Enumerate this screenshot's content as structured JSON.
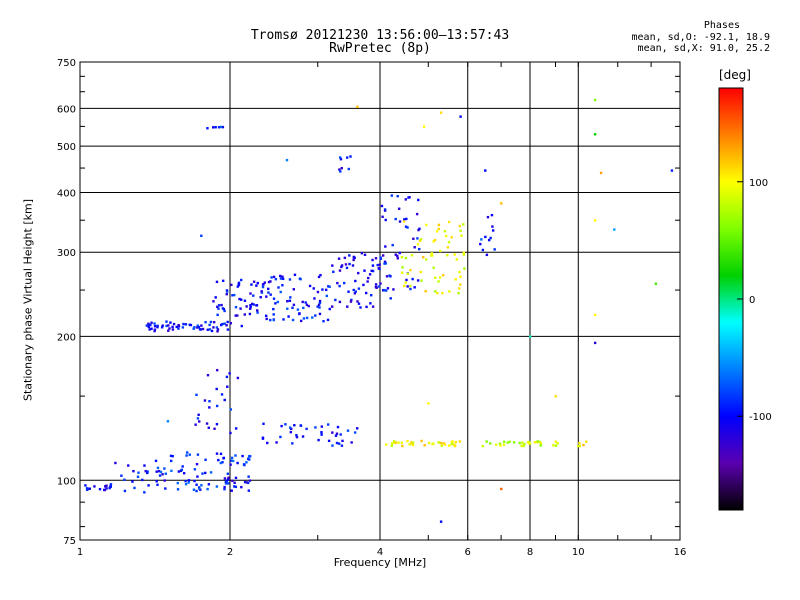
{
  "header": {
    "title_line1": "Tromsø 20121230 13:56:00–13:57:43",
    "title_line2": "RwPretec (8p)"
  },
  "stats": {
    "heading": "Phases",
    "line1": "mean, sd,O: -92.1, 18.9",
    "line2": "mean, sd,X:  91.0, 25.2"
  },
  "colorbar": {
    "label": "[deg]",
    "min": -180,
    "max": 180,
    "ticks": [
      100,
      0,
      -100
    ],
    "colors": [
      "#ff0000",
      "#ff7f00",
      "#ffff00",
      "#7fff00",
      "#00d000",
      "#00ffff",
      "#007fff",
      "#0000ff",
      "#5a00b0",
      "#000000"
    ]
  },
  "chart_data": {
    "type": "scatter",
    "title": "Tromsø 20121230 13:56:00–13:57:43",
    "subtitle": "RwPretec (8p)",
    "xlabel": "Frequency [MHz]",
    "ylabel": "Stationary phase Virtual Height [km]",
    "x_scale": "log",
    "y_scale": "log",
    "xlim": [
      1,
      16
    ],
    "ylim": [
      75,
      750
    ],
    "x_ticks": [
      1,
      2,
      4,
      6,
      8,
      10,
      16
    ],
    "y_ticks": [
      75,
      100,
      200,
      300,
      400,
      500,
      600,
      750
    ],
    "x_gridlines": [
      2,
      4,
      6,
      8,
      10
    ],
    "y_gridlines": [
      100,
      200,
      300,
      400,
      500,
      600
    ],
    "grid": true,
    "clusters": [
      {
        "x_range": [
          1.0,
          1.15
        ],
        "y_range": [
          95,
          98
        ],
        "phase": -105,
        "count": 14
      },
      {
        "x_range": [
          1.15,
          1.5
        ],
        "y_range": [
          93,
          110
        ],
        "phase": -95,
        "count": 30
      },
      {
        "x_range": [
          1.5,
          2.2
        ],
        "y_range": [
          95,
          102
        ],
        "phase": -90,
        "count": 30
      },
      {
        "x_range": [
          1.45,
          2.2
        ],
        "y_range": [
          103,
          115
        ],
        "phase": -90,
        "count": 45
      },
      {
        "x_range": [
          1.7,
          2.1
        ],
        "y_range": [
          125,
          175
        ],
        "phase": -100,
        "count": 25
      },
      {
        "x_range": [
          1.95,
          2.2
        ],
        "y_range": [
          98,
          102
        ],
        "phase": -110,
        "count": 10
      },
      {
        "x_range": [
          2.3,
          3.6
        ],
        "y_range": [
          118,
          132
        ],
        "phase": -95,
        "count": 40
      },
      {
        "x_range": [
          4.1,
          5.8
        ],
        "y_range": [
          118,
          121
        ],
        "phase": 95,
        "count": 35
      },
      {
        "x_range": [
          6.4,
          9.3
        ],
        "y_range": [
          118,
          121
        ],
        "phase": 85,
        "count": 30
      },
      {
        "x_range": [
          10.0,
          10.5
        ],
        "y_range": [
          118,
          121
        ],
        "phase": 110,
        "count": 5
      },
      {
        "x_range": [
          1.35,
          2.0
        ],
        "y_range": [
          205,
          215
        ],
        "phase": -100,
        "count": 60
      },
      {
        "x_range": [
          1.85,
          2.3
        ],
        "y_range": [
          210,
          265
        ],
        "phase": -100,
        "count": 50
      },
      {
        "x_range": [
          2.3,
          3.2
        ],
        "y_range": [
          215,
          270
        ],
        "phase": -95,
        "count": 80
      },
      {
        "x_range": [
          3.2,
          4.2
        ],
        "y_range": [
          230,
          300
        ],
        "phase": -105,
        "count": 70
      },
      {
        "x_range": [
          4.0,
          4.8
        ],
        "y_range": [
          250,
          400
        ],
        "phase": -100,
        "count": 45
      },
      {
        "x_range": [
          4.4,
          6.0
        ],
        "y_range": [
          245,
          350
        ],
        "phase": 95,
        "count": 60
      },
      {
        "x_range": [
          6.3,
          6.8
        ],
        "y_range": [
          290,
          360
        ],
        "phase": -90,
        "count": 12
      },
      {
        "x_range": [
          3.3,
          3.6
        ],
        "y_range": [
          440,
          480
        ],
        "phase": -100,
        "count": 8
      },
      {
        "x_range": [
          1.8,
          1.95
        ],
        "y_range": [
          545,
          550
        ],
        "phase": -90,
        "count": 6
      }
    ],
    "isolated_points": [
      {
        "x": 1.75,
        "y": 325,
        "phase": -80
      },
      {
        "x": 2.6,
        "y": 468,
        "phase": -60
      },
      {
        "x": 3.6,
        "y": 605,
        "phase": 120
      },
      {
        "x": 4.9,
        "y": 550,
        "phase": 100
      },
      {
        "x": 5.3,
        "y": 588,
        "phase": 110
      },
      {
        "x": 5.8,
        "y": 577,
        "phase": -100
      },
      {
        "x": 6.5,
        "y": 445,
        "phase": -100
      },
      {
        "x": 7.0,
        "y": 380,
        "phase": 120
      },
      {
        "x": 10.8,
        "y": 625,
        "phase": 60
      },
      {
        "x": 10.8,
        "y": 530,
        "phase": 20
      },
      {
        "x": 11.1,
        "y": 440,
        "phase": 130
      },
      {
        "x": 10.8,
        "y": 350,
        "phase": 100
      },
      {
        "x": 11.8,
        "y": 335,
        "phase": -50
      },
      {
        "x": 14.3,
        "y": 258,
        "phase": 40
      },
      {
        "x": 15.4,
        "y": 445,
        "phase": -90
      },
      {
        "x": 10.8,
        "y": 222,
        "phase": 100
      },
      {
        "x": 10.8,
        "y": 194,
        "phase": -120
      },
      {
        "x": 9.0,
        "y": 150,
        "phase": 110
      },
      {
        "x": 7.0,
        "y": 96,
        "phase": 150
      },
      {
        "x": 5.3,
        "y": 82,
        "phase": -100
      },
      {
        "x": 5.0,
        "y": 145,
        "phase": 100
      },
      {
        "x": 8.0,
        "y": 200,
        "phase": -10
      },
      {
        "x": 1.5,
        "y": 133,
        "phase": -60
      }
    ]
  }
}
